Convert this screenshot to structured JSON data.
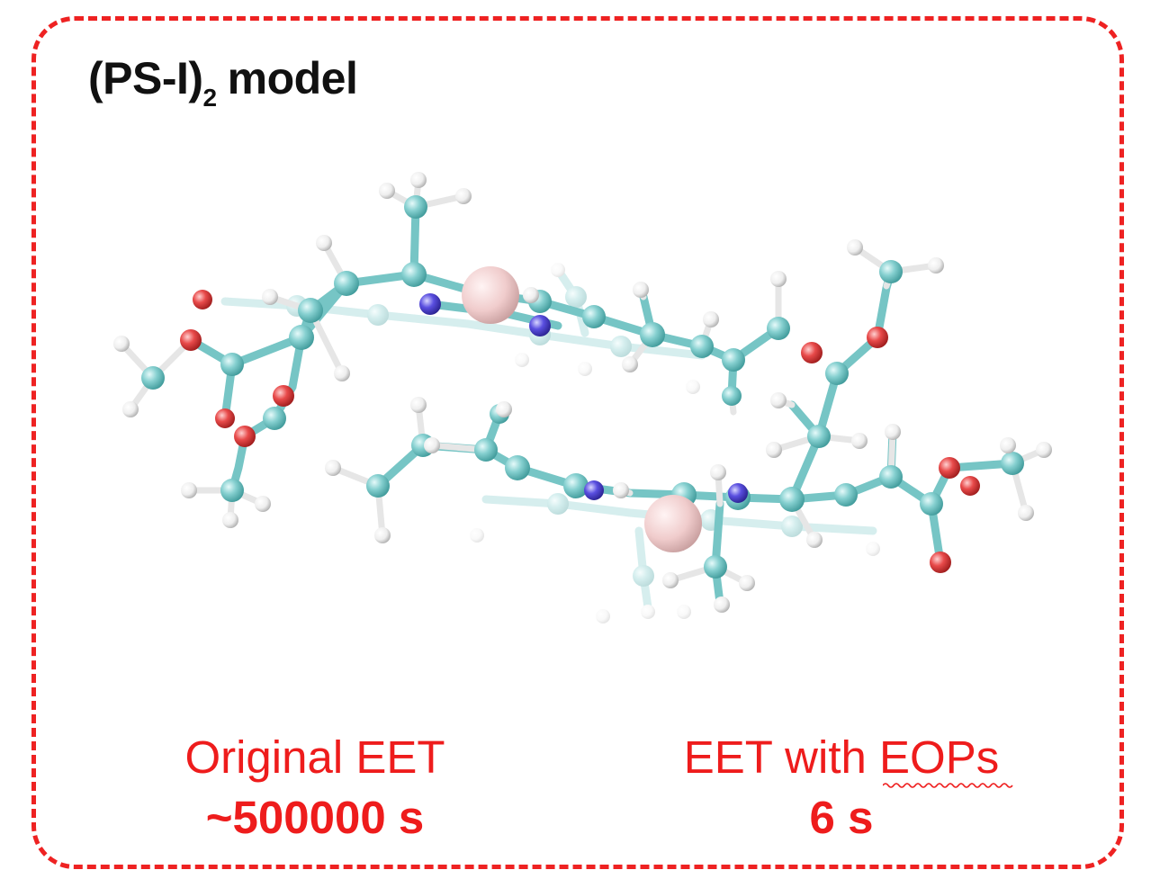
{
  "title": {
    "main": "(PS-I)",
    "subscript": "2",
    "rest": "model"
  },
  "left_block": {
    "label": "Original EET",
    "time": "~500000 s"
  },
  "right_block": {
    "label": "EET with EOPs",
    "time": "6 s"
  },
  "colors": {
    "border": "#ee2222",
    "label_text": "#ee1c1c",
    "carbon": "#76c5c5",
    "oxygen": "#e84a4a",
    "nitrogen": "#5a4fe0",
    "hydrogen": "#f2f2f2",
    "metal": "#f0c8c8"
  }
}
